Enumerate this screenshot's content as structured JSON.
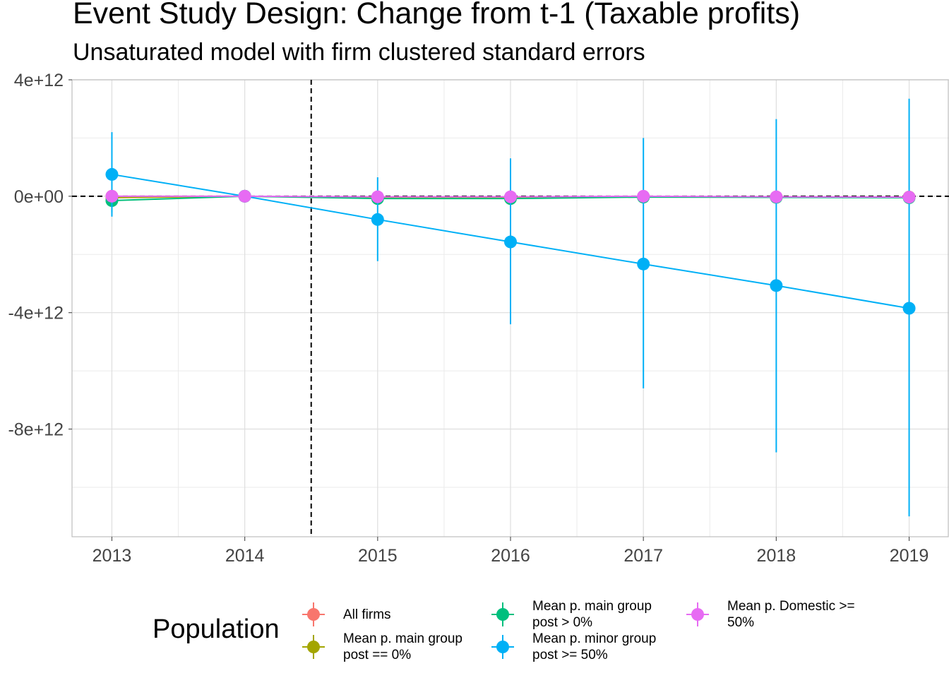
{
  "title": "Event Study Design: Change from t-1 (Taxable profits)",
  "subtitle": "Unsaturated model with firm clustered standard errors",
  "chart_data": {
    "type": "line",
    "title": "Event Study Design: Change from t-1 (Taxable profits)",
    "subtitle": "Unsaturated model with firm clustered standard errors",
    "xlabel": "",
    "ylabel": "",
    "x": [
      2013,
      2014,
      2015,
      2016,
      2017,
      2018,
      2019
    ],
    "x_tick_labels": [
      "2013",
      "2014",
      "2015",
      "2016",
      "2017",
      "2018",
      "2019"
    ],
    "y_ticks": [
      4000000000000.0,
      0,
      -4000000000000.0,
      -8000000000000.0
    ],
    "y_tick_labels": [
      "4e+12",
      "0e+00",
      "-4e+12",
      "-8e+12"
    ],
    "xlim": [
      2012.7,
      2019.3
    ],
    "ylim": [
      -11700000000000.0,
      4000000000000.0
    ],
    "grid": true,
    "reference_lines": {
      "vertical_x": 2014.5,
      "horizontal_y": 0
    },
    "legend_title": "Population",
    "legend_position": "bottom",
    "series": [
      {
        "name": "All firms",
        "color": "#F8766D",
        "values": [
          0,
          0,
          -50000000000.0,
          -50000000000.0,
          -20000000000.0,
          -30000000000.0,
          -30000000000.0
        ],
        "lower": [
          -100000000000.0,
          0,
          -100000000000.0,
          -100000000000.0,
          -100000000000.0,
          -100000000000.0,
          -100000000000.0
        ],
        "upper": [
          100000000000.0,
          0,
          50000000000.0,
          50000000000.0,
          50000000000.0,
          50000000000.0,
          50000000000.0
        ]
      },
      {
        "name": "Mean p. main group\npost == 0%",
        "color": "#A3A500",
        "values": [
          -50000000000.0,
          0,
          -50000000000.0,
          -50000000000.0,
          -20000000000.0,
          -30000000000.0,
          -30000000000.0
        ],
        "lower": [
          -150000000000.0,
          0,
          -100000000000.0,
          -100000000000.0,
          -100000000000.0,
          -100000000000.0,
          -100000000000.0
        ],
        "upper": [
          50000000000.0,
          0,
          50000000000.0,
          50000000000.0,
          50000000000.0,
          50000000000.0,
          50000000000.0
        ]
      },
      {
        "name": "Mean p. main group\npost > 0%",
        "color": "#00BF7D",
        "values": [
          -150000000000.0,
          0,
          -80000000000.0,
          -80000000000.0,
          -30000000000.0,
          -40000000000.0,
          -50000000000.0
        ],
        "lower": [
          -550000000000.0,
          0,
          -150000000000.0,
          -150000000000.0,
          -100000000000.0,
          -100000000000.0,
          -100000000000.0
        ],
        "upper": [
          250000000000.0,
          0,
          0.0,
          0.0,
          50000000000.0,
          50000000000.0,
          50000000000.0
        ]
      },
      {
        "name": "Mean p. minor group\npost >= 50%",
        "color": "#00B0F6",
        "values": [
          750000000000.0,
          0,
          -800000000000.0,
          -1570000000000.0,
          -2330000000000.0,
          -3070000000000.0,
          -3850000000000.0
        ],
        "lower": [
          -700000000000.0,
          0,
          -2230000000000.0,
          -4400000000000.0,
          -6600000000000.0,
          -8800000000000.0,
          -11000000000000.0
        ],
        "upper": [
          2200000000000.0,
          0,
          650000000000.0,
          1300000000000.0,
          2000000000000.0,
          2650000000000.0,
          3350000000000.0
        ]
      },
      {
        "name": "Mean p. Domestic >=\n50%",
        "color": "#E76BF3",
        "values": [
          0,
          0,
          -20000000000.0,
          -20000000000.0,
          0,
          -20000000000.0,
          -30000000000.0
        ],
        "lower": [
          -50000000000.0,
          0,
          -50000000000.0,
          -50000000000.0,
          -50000000000.0,
          -50000000000.0,
          -50000000000.0
        ],
        "upper": [
          50000000000.0,
          0,
          20000000000.0,
          20000000000.0,
          50000000000.0,
          20000000000.0,
          20000000000.0
        ]
      }
    ]
  }
}
